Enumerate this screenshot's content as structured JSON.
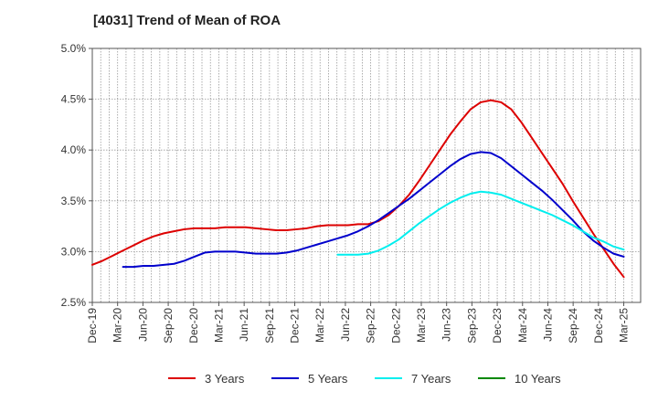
{
  "chart_data": {
    "type": "line",
    "title": "[4031]  Trend of Mean of ROA",
    "xlabel": "",
    "ylabel": "",
    "x_ticks": [
      "Dec-19",
      "Mar-20",
      "Jun-20",
      "Sep-20",
      "Dec-20",
      "Mar-21",
      "Jun-21",
      "Sep-21",
      "Dec-21",
      "Mar-22",
      "Jun-22",
      "Sep-22",
      "Dec-22",
      "Mar-23",
      "Jun-23",
      "Sep-23",
      "Dec-23",
      "Mar-24",
      "Jun-24",
      "Sep-24",
      "Dec-24",
      "Mar-25"
    ],
    "y_ticks": [
      "2.5%",
      "3.0%",
      "3.5%",
      "4.0%",
      "4.5%",
      "5.0%"
    ],
    "y_tick_values": [
      2.5,
      3.0,
      3.5,
      4.0,
      4.5,
      5.0
    ],
    "ylim": [
      2.5,
      5.0
    ],
    "grid": true,
    "legend_position": "bottom",
    "series": [
      {
        "name": "3 Years",
        "color": "#dd0000",
        "values": [
          2.87,
          2.91,
          2.96,
          3.01,
          3.06,
          3.11,
          3.15,
          3.18,
          3.2,
          3.22,
          3.23,
          3.23,
          3.23,
          3.24,
          3.24,
          3.24,
          3.23,
          3.22,
          3.21,
          3.21,
          3.22,
          3.23,
          3.25,
          3.26,
          3.26,
          3.26,
          3.27,
          3.27,
          3.3,
          3.36,
          3.45,
          3.56,
          3.7,
          3.85,
          4.0,
          4.15,
          4.28,
          4.4,
          4.47,
          4.49,
          4.47,
          4.4,
          4.27,
          4.12,
          3.97,
          3.82,
          3.67,
          3.5,
          3.34,
          3.18,
          3.03,
          2.88,
          2.75
        ]
      },
      {
        "name": "5 Years",
        "color": "#0000cc",
        "values": [
          null,
          null,
          null,
          2.85,
          2.85,
          2.86,
          2.86,
          2.87,
          2.88,
          2.91,
          2.95,
          2.99,
          3.0,
          3.0,
          3.0,
          2.99,
          2.98,
          2.98,
          2.98,
          2.99,
          3.01,
          3.04,
          3.07,
          3.1,
          3.13,
          3.16,
          3.2,
          3.25,
          3.31,
          3.38,
          3.45,
          3.52,
          3.6,
          3.68,
          3.76,
          3.84,
          3.91,
          3.96,
          3.98,
          3.97,
          3.92,
          3.84,
          3.76,
          3.68,
          3.6,
          3.51,
          3.41,
          3.31,
          3.2,
          3.11,
          3.04,
          2.98,
          2.95
        ]
      },
      {
        "name": "7 Years",
        "color": "#00eeee",
        "values": [
          null,
          null,
          null,
          null,
          null,
          null,
          null,
          null,
          null,
          null,
          null,
          null,
          null,
          null,
          null,
          null,
          null,
          null,
          null,
          null,
          null,
          null,
          null,
          null,
          2.97,
          2.97,
          2.97,
          2.98,
          3.01,
          3.06,
          3.12,
          3.2,
          3.28,
          3.35,
          3.42,
          3.48,
          3.53,
          3.57,
          3.59,
          3.58,
          3.56,
          3.52,
          3.48,
          3.44,
          3.4,
          3.36,
          3.31,
          3.26,
          3.2,
          3.14,
          3.1,
          3.05,
          3.02
        ]
      },
      {
        "name": "10 Years",
        "color": "#008800",
        "values": []
      }
    ]
  }
}
